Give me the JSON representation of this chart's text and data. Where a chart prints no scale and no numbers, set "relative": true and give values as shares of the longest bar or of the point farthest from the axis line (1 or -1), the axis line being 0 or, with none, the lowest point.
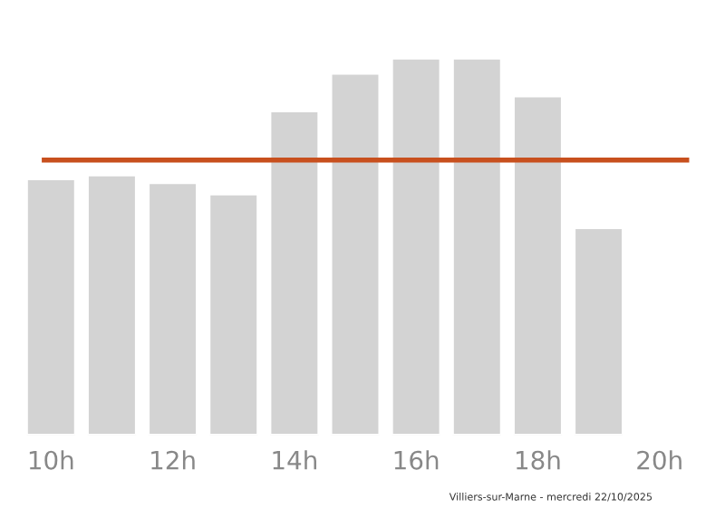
{
  "chart_data": {
    "type": "bar",
    "relative": true,
    "categories": [
      "10h",
      null,
      "12h",
      null,
      "14h",
      null,
      "16h",
      null,
      "18h",
      null,
      "20h"
    ],
    "values": [
      0.68,
      0.69,
      0.67,
      0.64,
      0.86,
      0.96,
      1,
      1,
      0.9,
      0.55,
      null
    ],
    "color": "#d3d3d3",
    "ref_lines": [
      {
        "axis": "y",
        "value": 0.73,
        "color": "#c8501e",
        "line_style": "solid"
      }
    ],
    "annotations": [
      "Villiers-sur-Marne - mercredi 22/10/2025"
    ],
    "grid": false,
    "legend": false
  }
}
